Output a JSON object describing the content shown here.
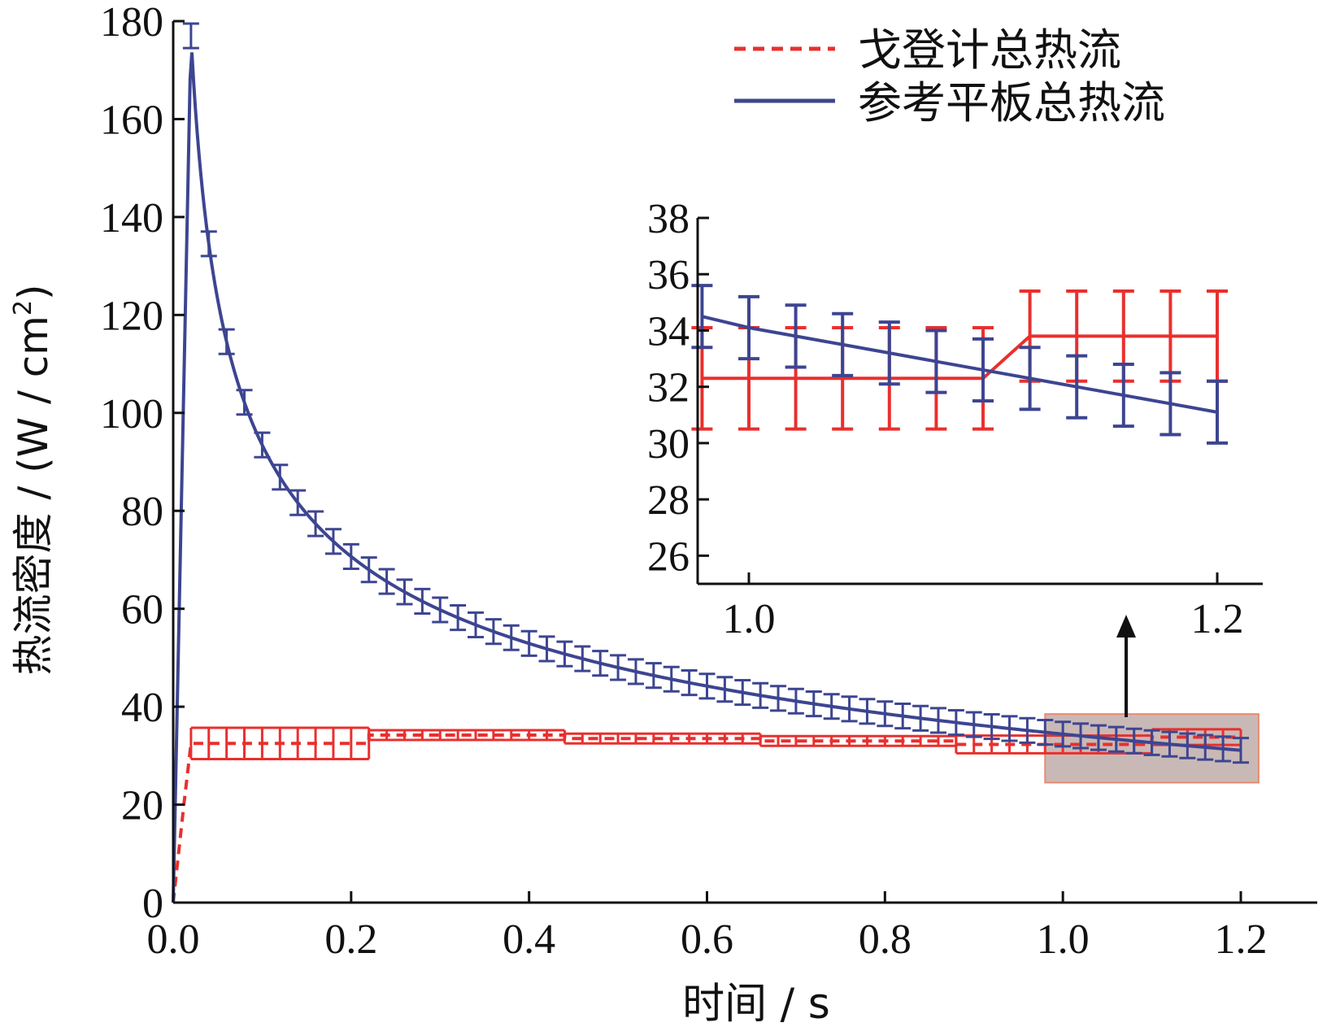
{
  "colors": {
    "red": "#e8302e",
    "blue": "#3d4591",
    "axis": "#111111",
    "highlight_fill": "#c9b9b6",
    "highlight_stroke": "#e98a6f"
  },
  "chart_data": [
    {
      "id": "main",
      "type": "line",
      "title": "",
      "xlabel": "时间 / s",
      "ylabel_main": "热流密度 / (W / cm",
      "ylabel_sup": "2",
      "ylabel_close": ")",
      "xlim": [
        0.0,
        1.23
      ],
      "ylim": [
        0,
        180
      ],
      "x_ticks": [
        0.0,
        0.2,
        0.4,
        0.6,
        0.8,
        1.0,
        1.2
      ],
      "x_tick_labels": [
        "0.0",
        "0.2",
        "0.4",
        "0.6",
        "0.8",
        "1.0",
        "1.2"
      ],
      "y_ticks": [
        0,
        20,
        40,
        60,
        80,
        100,
        120,
        140,
        160,
        180
      ],
      "y_tick_labels": [
        "0",
        "20",
        "40",
        "60",
        "80",
        "100",
        "120",
        "140",
        "160",
        "180"
      ],
      "legend": {
        "position": "top-right",
        "entries": [
          {
            "label": "戈登计总热流",
            "style": "dashed",
            "color_key": "red"
          },
          {
            "label": "参考平板总热流",
            "style": "solid",
            "color_key": "blue"
          }
        ]
      },
      "series": [
        {
          "name": "参考平板总热流",
          "color_key": "blue",
          "style": "solid",
          "error_bar": 2.5,
          "peak": {
            "x": 0.02,
            "y": 177
          },
          "error_every": 0.02,
          "start": {
            "x": 0.0,
            "y": 0
          },
          "decay": {
            "a": 35.0,
            "x_end": 1.2
          }
        },
        {
          "name": "戈登计总热流",
          "color_key": "red",
          "style": "dashed",
          "error_every": 0.02,
          "ramp": [
            {
              "x": 0.0,
              "y": 0
            },
            {
              "x": 0.012,
              "y": 20
            },
            {
              "x": 0.02,
              "y": 32.5
            }
          ],
          "steps": [
            {
              "x0": 0.02,
              "x1": 0.22,
              "y": 32.5,
              "err": 3.2
            },
            {
              "x0": 0.22,
              "x1": 0.44,
              "y": 34.2,
              "err": 1.0
            },
            {
              "x0": 0.44,
              "x1": 0.66,
              "y": 33.5,
              "err": 1.0
            },
            {
              "x0": 0.66,
              "x1": 0.88,
              "y": 33.0,
              "err": 1.0
            },
            {
              "x0": 0.88,
              "x1": 1.1,
              "y": 32.3,
              "err": 1.8
            },
            {
              "x0": 1.1,
              "x1": 1.2,
              "y": 33.8,
              "err": 1.6
            }
          ]
        }
      ],
      "highlight_region": {
        "x0": 0.98,
        "x1": 1.22,
        "y0": 24.5,
        "y1": 38.5
      }
    },
    {
      "id": "inset",
      "type": "line",
      "title": "",
      "xlim": [
        0.98,
        1.215
      ],
      "ylim": [
        25,
        38
      ],
      "x_ticks": [
        1.0,
        1.2
      ],
      "x_tick_labels": [
        "1.0",
        "1.2"
      ],
      "y_ticks": [
        26,
        28,
        30,
        32,
        34,
        36,
        38
      ],
      "y_tick_labels": [
        "26",
        "28",
        "30",
        "32",
        "34",
        "36",
        "38"
      ],
      "series": [
        {
          "name": "参考平板总热流",
          "color_key": "blue",
          "points": [
            [
              0.98,
              34.5
            ],
            [
              1.0,
              34.1
            ],
            [
              1.02,
              33.8
            ],
            [
              1.04,
              33.5
            ],
            [
              1.06,
              33.2
            ],
            [
              1.08,
              32.9
            ],
            [
              1.1,
              32.6
            ],
            [
              1.12,
              32.3
            ],
            [
              1.14,
              32.0
            ],
            [
              1.16,
              31.7
            ],
            [
              1.18,
              31.4
            ],
            [
              1.2,
              31.1
            ]
          ],
          "error_x": [
            0.98,
            1.0,
            1.02,
            1.04,
            1.06,
            1.08,
            1.1,
            1.12,
            1.14,
            1.16,
            1.18,
            1.2
          ],
          "error": 1.1
        },
        {
          "name": "戈登计总热流",
          "color_key": "red",
          "points": [
            [
              0.98,
              32.3
            ],
            [
              1.0,
              32.3
            ],
            [
              1.02,
              32.3
            ],
            [
              1.04,
              32.3
            ],
            [
              1.06,
              32.3
            ],
            [
              1.08,
              32.3
            ],
            [
              1.1,
              32.3
            ],
            [
              1.12,
              33.8
            ],
            [
              1.14,
              33.8
            ],
            [
              1.16,
              33.8
            ],
            [
              1.18,
              33.8
            ],
            [
              1.2,
              33.8
            ]
          ],
          "error_x": [
            0.98,
            1.0,
            1.02,
            1.04,
            1.06,
            1.08,
            1.1,
            1.12,
            1.14,
            1.16,
            1.18,
            1.2
          ],
          "error_values": [
            1.8,
            1.8,
            1.8,
            1.8,
            1.8,
            1.8,
            1.8,
            1.6,
            1.6,
            1.6,
            1.6,
            1.6
          ]
        }
      ]
    }
  ]
}
